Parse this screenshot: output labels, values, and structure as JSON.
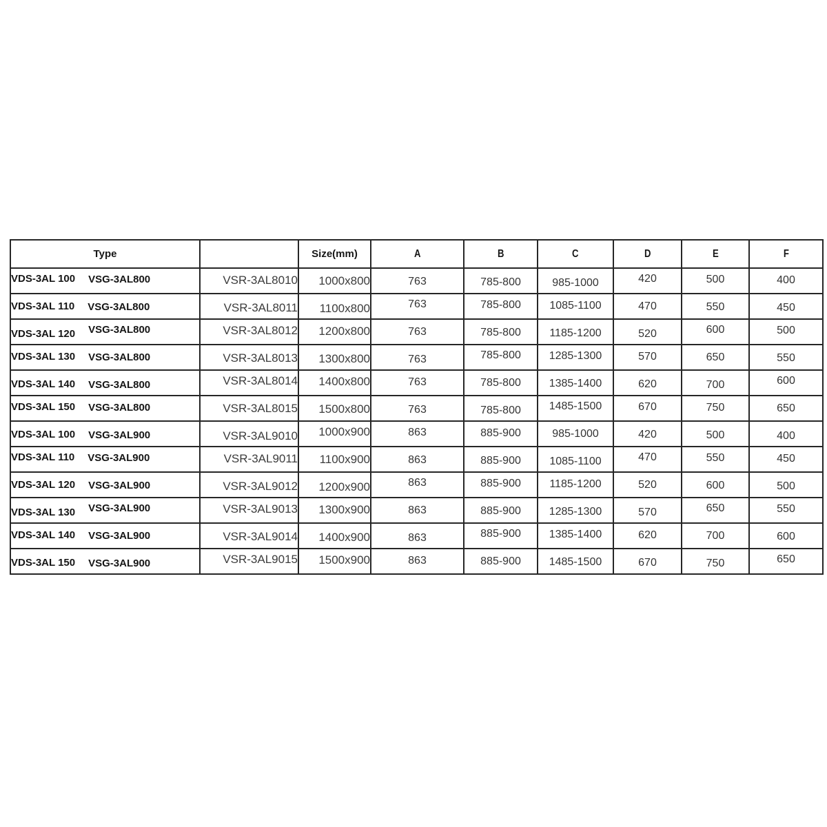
{
  "colors": {
    "background": "#ffffff",
    "border": "#262626",
    "heading_text": "#161616",
    "body_text": "#3c3c3c"
  },
  "table": {
    "header": {
      "type": "Type",
      "code": "",
      "size": "Size(mm)",
      "dims": [
        "A",
        "B",
        "C",
        "D",
        "E",
        "F"
      ]
    },
    "rows": [
      {
        "vds": "VDS-3AL 100",
        "vsg": "VSG-3AL800",
        "code": "VSR-3AL8010",
        "size": "1000x800",
        "a": "763",
        "b": "785-800",
        "c": "985-1000",
        "d": "420",
        "e": "500",
        "f": "400"
      },
      {
        "vds": "VDS-3AL 110",
        "vsg": "VSG-3AL800",
        "code": "VSR-3AL8011",
        "size": "1100x800",
        "a": "763",
        "b": "785-800",
        "c": "1085-1100",
        "d": "470",
        "e": "550",
        "f": "450"
      },
      {
        "vds": "VDS-3AL 120",
        "vsg": "VSG-3AL800",
        "code": "VSR-3AL8012",
        "size": "1200x800",
        "a": "763",
        "b": "785-800",
        "c": "1185-1200",
        "d": "520",
        "e": "600",
        "f": "500"
      },
      {
        "vds": "VDS-3AL 130",
        "vsg": "VSG-3AL800",
        "code": "VSR-3AL8013",
        "size": "1300x800",
        "a": "763",
        "b": "785-800",
        "c": "1285-1300",
        "d": "570",
        "e": "650",
        "f": "550"
      },
      {
        "vds": "VDS-3AL 140",
        "vsg": "VSG-3AL800",
        "code": "VSR-3AL8014",
        "size": "1400x800",
        "a": "763",
        "b": "785-800",
        "c": "1385-1400",
        "d": "620",
        "e": "700",
        "f": "600"
      },
      {
        "vds": "VDS-3AL 150",
        "vsg": "VSG-3AL800",
        "code": "VSR-3AL8015",
        "size": "1500x800",
        "a": "763",
        "b": "785-800",
        "c": "1485-1500",
        "d": "670",
        "e": "750",
        "f": "650"
      },
      {
        "vds": "VDS-3AL 100",
        "vsg": "VSG-3AL900",
        "code": "VSR-3AL9010",
        "size": "1000x900",
        "a": "863",
        "b": "885-900",
        "c": "985-1000",
        "d": "420",
        "e": "500",
        "f": "400"
      },
      {
        "vds": "VDS-3AL 110",
        "vsg": "VSG-3AL900",
        "code": "VSR-3AL9011",
        "size": "1100x900",
        "a": "863",
        "b": "885-900",
        "c": "1085-1100",
        "d": "470",
        "e": "550",
        "f": "450"
      },
      {
        "vds": "VDS-3AL 120",
        "vsg": "VSG-3AL900",
        "code": "VSR-3AL9012",
        "size": "1200x900",
        "a": "863",
        "b": "885-900",
        "c": "1185-1200",
        "d": "520",
        "e": "600",
        "f": "500"
      },
      {
        "vds": "VDS-3AL 130",
        "vsg": "VSG-3AL900",
        "code": "VSR-3AL9013",
        "size": "1300x900",
        "a": "863",
        "b": "885-900",
        "c": "1285-1300",
        "d": "570",
        "e": "650",
        "f": "550"
      },
      {
        "vds": "VDS-3AL 140",
        "vsg": "VSG-3AL900",
        "code": "VSR-3AL9014",
        "size": "1400x900",
        "a": "863",
        "b": "885-900",
        "c": "1385-1400",
        "d": "620",
        "e": "700",
        "f": "600"
      },
      {
        "vds": "VDS-3AL 150",
        "vsg": "VSG-3AL900",
        "code": "VSR-3AL9015",
        "size": "1500x900",
        "a": "863",
        "b": "885-900",
        "c": "1485-1500",
        "d": "670",
        "e": "750",
        "f": "650"
      }
    ]
  }
}
